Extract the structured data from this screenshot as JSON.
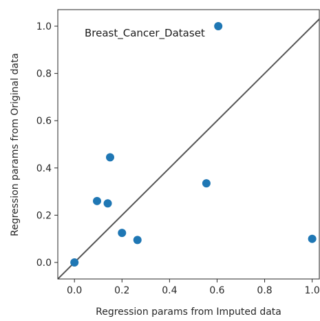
{
  "chart_data": {
    "type": "scatter",
    "xlabel": "Regression params from Imputed data",
    "ylabel": "Regression params from Original data",
    "annotation": "Breast_Cancer_Dataset",
    "xlim": [
      -0.07,
      1.03
    ],
    "ylim": [
      -0.07,
      1.07
    ],
    "xticks": [
      "0.0",
      "0.2",
      "0.4",
      "0.6",
      "0.8",
      "1.0"
    ],
    "yticks": [
      "0.0",
      "0.2",
      "0.4",
      "0.6",
      "0.8",
      "1.0"
    ],
    "grid": false,
    "reference_line": "y = x",
    "colors": {
      "points": "#1f77b4",
      "line": "#555555",
      "axes": "#262626"
    },
    "points": [
      {
        "x": 0.0,
        "y": 0.0
      },
      {
        "x": 0.095,
        "y": 0.26
      },
      {
        "x": 0.14,
        "y": 0.25
      },
      {
        "x": 0.15,
        "y": 0.445
      },
      {
        "x": 0.2,
        "y": 0.125
      },
      {
        "x": 0.265,
        "y": 0.095
      },
      {
        "x": 0.555,
        "y": 0.335
      },
      {
        "x": 0.605,
        "y": 1.0
      },
      {
        "x": 1.0,
        "y": 0.1
      }
    ]
  }
}
